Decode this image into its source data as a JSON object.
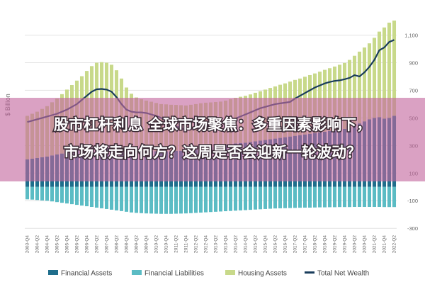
{
  "chart_data": {
    "type": "stacked-bar-line",
    "y_label": "$ Billion",
    "overlay_text": [
      "股市杠杆利息 全球市场聚焦：多重因素影响下，",
      "市场将走向何方？这周是否会迎新一轮波动？"
    ],
    "categories": [
      "2003-Q4",
      null,
      "2004-Q2",
      null,
      "2004-Q4",
      null,
      "2005-Q2",
      null,
      "2005-Q4",
      null,
      "2006-Q2",
      null,
      "2006-Q4",
      null,
      "2007-Q2",
      null,
      "2007-Q4",
      null,
      "2008-Q2",
      null,
      "2008-Q4",
      null,
      "2009-Q2",
      null,
      "2009-Q4",
      null,
      "2010-Q2",
      null,
      "2010-Q4",
      null,
      "2011-Q2",
      null,
      "2011-Q4",
      null,
      "2012-Q2",
      null,
      "2012-Q4",
      null,
      "2013-Q2",
      null,
      "2013-Q4",
      null,
      "2014-Q2",
      null,
      "2014-Q4",
      null,
      "2015-Q2",
      null,
      "2015-Q4",
      null,
      "2016-Q2",
      null,
      "2016-Q4",
      null,
      "2017-Q2",
      null,
      "2017-Q4",
      null,
      "2018-Q2",
      null,
      "2018-Q4",
      null,
      "2019-Q2",
      null,
      "2019-Q4",
      null,
      "2020-Q2",
      null,
      "2020-Q4",
      null,
      "2021-Q2",
      null,
      "2021-Q4",
      null,
      "2022-Q2"
    ],
    "series": [
      {
        "name": "Financial Assets",
        "color": "#1f6e8c",
        "kind": "bar",
        "values": [
          200,
          205,
          210,
          215,
          220,
          228,
          235,
          242,
          250,
          258,
          265,
          272,
          280,
          285,
          290,
          292,
          290,
          285,
          275,
          265,
          250,
          245,
          248,
          255,
          260,
          262,
          258,
          255,
          258,
          260,
          262,
          262,
          260,
          265,
          270,
          278,
          285,
          290,
          295,
          300,
          305,
          310,
          315,
          318,
          320,
          325,
          330,
          335,
          340,
          345,
          350,
          355,
          360,
          365,
          370,
          375,
          380,
          385,
          390,
          395,
          400,
          405,
          410,
          415,
          420,
          430,
          445,
          460,
          475,
          490,
          500,
          505,
          495,
          500,
          515
        ]
      },
      {
        "name": "Financial Liabilities",
        "color": "#5bbcc4",
        "kind": "bar",
        "values": [
          -90,
          -92,
          -95,
          -98,
          -100,
          -105,
          -110,
          -115,
          -120,
          -125,
          -130,
          -135,
          -140,
          -145,
          -150,
          -155,
          -160,
          -165,
          -170,
          -175,
          -180,
          -185,
          -188,
          -190,
          -192,
          -193,
          -194,
          -195,
          -195,
          -195,
          -194,
          -193,
          -192,
          -190,
          -188,
          -186,
          -184,
          -182,
          -180,
          -178,
          -176,
          -174,
          -172,
          -170,
          -168,
          -166,
          -164,
          -162,
          -160,
          -158,
          -156,
          -155,
          -154,
          -153,
          -152,
          -151,
          -150,
          -150,
          -149,
          -148,
          -148,
          -147,
          -147,
          -146,
          -146,
          -146,
          -145,
          -145,
          -145,
          -145,
          -145,
          -145,
          -146,
          -146,
          -146
        ]
      },
      {
        "name": "Housing Assets",
        "color": "#c8d98a",
        "kind": "bar",
        "stack_on": 0,
        "values": [
          315,
          325,
          335,
          350,
          365,
          385,
          405,
          430,
          455,
          480,
          505,
          530,
          560,
          590,
          610,
          612,
          610,
          600,
          570,
          520,
          470,
          430,
          400,
          380,
          365,
          355,
          350,
          345,
          340,
          335,
          332,
          330,
          330,
          330,
          330,
          328,
          325,
          322,
          320,
          318,
          320,
          325,
          330,
          335,
          340,
          345,
          352,
          358,
          365,
          372,
          378,
          385,
          390,
          398,
          405,
          410,
          418,
          425,
          432,
          440,
          448,
          455,
          462,
          470,
          478,
          490,
          505,
          520,
          535,
          550,
          580,
          620,
          660,
          690,
          690
        ]
      },
      {
        "name": "Total Net Wealth",
        "color": "#1a3d5c",
        "kind": "line",
        "values": [
          470,
          480,
          490,
          500,
          510,
          520,
          530,
          545,
          560,
          580,
          600,
          630,
          660,
          690,
          707,
          710,
          705,
          690,
          650,
          600,
          560,
          545,
          540,
          540,
          535,
          525,
          515,
          500,
          480,
          460,
          440,
          425,
          414,
          418,
          425,
          432,
          440,
          445,
          450,
          460,
          470,
          480,
          495,
          510,
          525,
          540,
          555,
          570,
          580,
          590,
          600,
          605,
          610,
          616,
          640,
          660,
          680,
          700,
          720,
          735,
          750,
          760,
          768,
          772,
          780,
          790,
          810,
          800,
          830,
          870,
          920,
          990,
          1010,
          1050,
          1065
        ]
      }
    ],
    "ylim": [
      -340,
      1200
    ],
    "yticks": [
      -300,
      -100,
      100,
      300,
      500,
      700,
      900,
      {
        "value": 1100,
        "label": "1,100"
      }
    ],
    "grid": true
  }
}
